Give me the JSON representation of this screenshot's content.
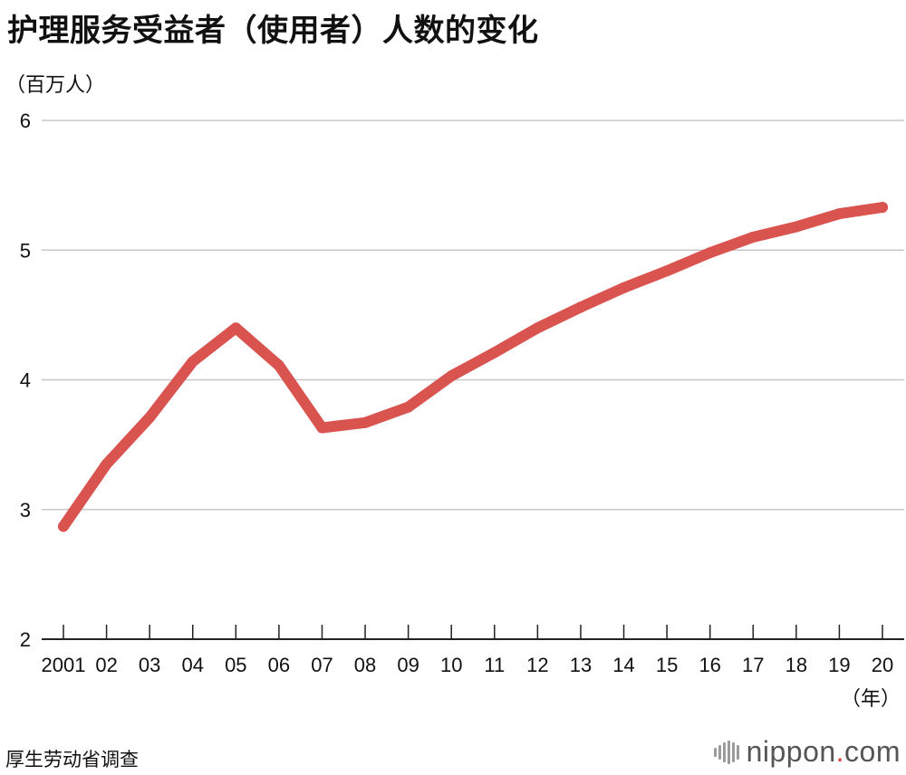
{
  "title": "护理服务受益者（使用者）人数的变化",
  "y_unit_label": "（百万人）",
  "x_unit_label": "（年）",
  "source": "厚生劳动省调查",
  "brand": {
    "name": "nippon",
    "dot": ".",
    "domain": "com"
  },
  "colors": {
    "line": "#D9534F",
    "grid": "#C8C8C8",
    "axis": "#222222",
    "brand_dot": "#E03A3A"
  },
  "chart_data": {
    "type": "line",
    "title": "护理服务受益者（使用者）人数的变化",
    "xlabel": "（年）",
    "ylabel": "（百万人）",
    "categories": [
      "2001",
      "02",
      "03",
      "04",
      "05",
      "06",
      "07",
      "08",
      "09",
      "10",
      "11",
      "12",
      "13",
      "14",
      "15",
      "16",
      "17",
      "18",
      "19",
      "20"
    ],
    "series": [
      {
        "values": [
          2.87,
          3.35,
          3.71,
          4.14,
          4.4,
          4.11,
          3.63,
          3.67,
          3.79,
          4.03,
          4.21,
          4.4,
          4.56,
          4.71,
          4.84,
          4.98,
          5.1,
          5.18,
          5.28,
          5.33
        ]
      }
    ],
    "ylim": [
      2,
      6
    ],
    "yticks": [
      2,
      3,
      4,
      5,
      6
    ],
    "grid": true,
    "legend": "none"
  }
}
